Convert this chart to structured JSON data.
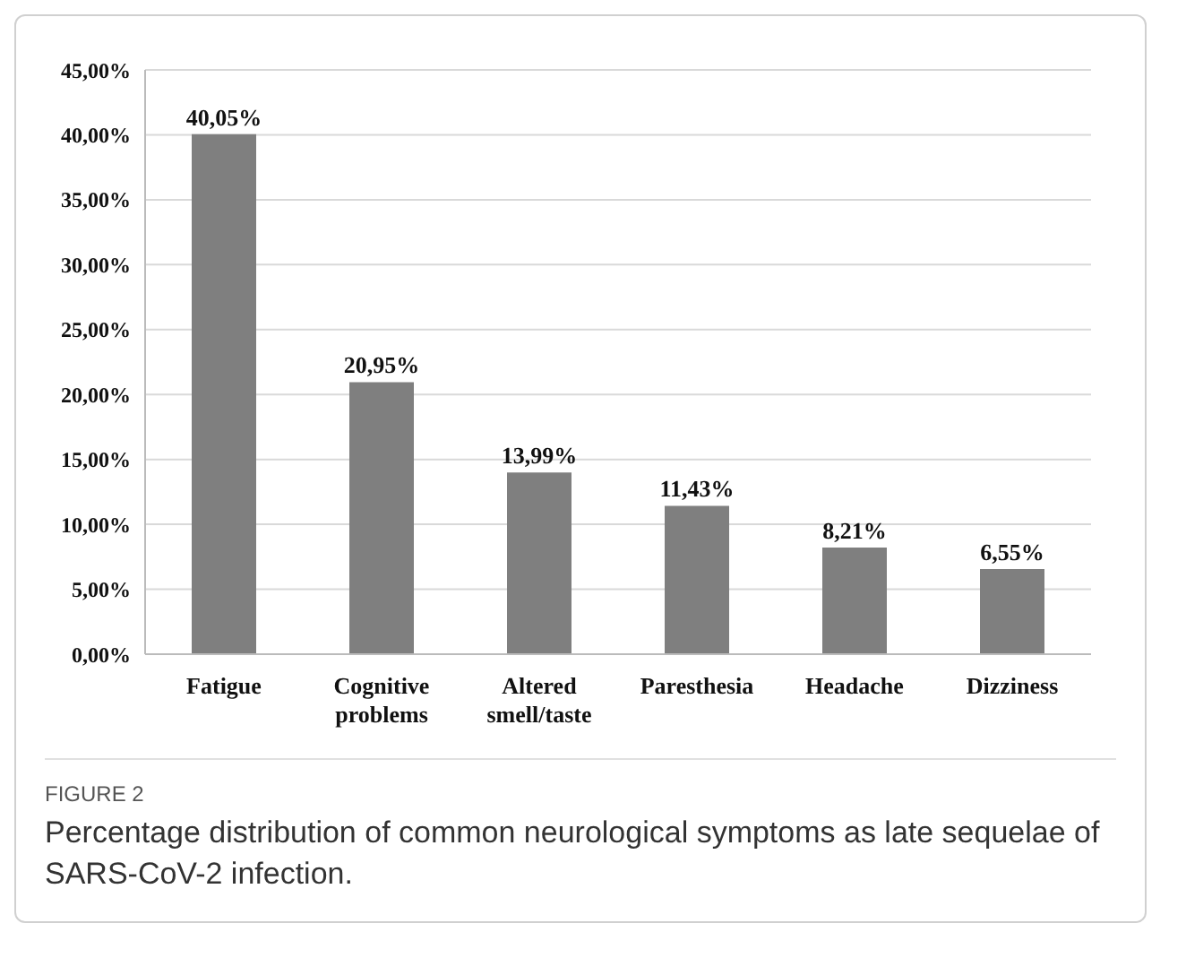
{
  "chart_data": {
    "type": "bar",
    "categories": [
      "Fatigue",
      "Cognitive problems",
      "Altered smell/taste",
      "Paresthesia",
      "Headache",
      "Dizziness"
    ],
    "values": [
      40.05,
      20.95,
      13.99,
      11.43,
      8.21,
      6.55
    ],
    "value_labels": [
      "40,05%",
      "20,95%",
      "13,99%",
      "11,43%",
      "8,21%",
      "6,55%"
    ],
    "color": "#7f7f7f",
    "ylim": [
      0,
      45
    ],
    "yticks": [
      {
        "value": 0,
        "label": "0,00%"
      },
      {
        "value": 5,
        "label": "5,00%"
      },
      {
        "value": 10,
        "label": "10,00%"
      },
      {
        "value": 15,
        "label": "15,00%"
      },
      {
        "value": 20,
        "label": "20,00%"
      },
      {
        "value": 25,
        "label": "25,00%"
      },
      {
        "value": 30,
        "label": "30,00%"
      },
      {
        "value": 35,
        "label": "35,00%"
      },
      {
        "value": 40,
        "label": "40,00%"
      },
      {
        "value": 45,
        "label": "45,00%"
      }
    ],
    "grid": "y",
    "annotations": [
      "FIGURE 2",
      "Percentage distribution of common neurological symptoms as late sequelae of SARS-CoV-2 infection."
    ]
  }
}
